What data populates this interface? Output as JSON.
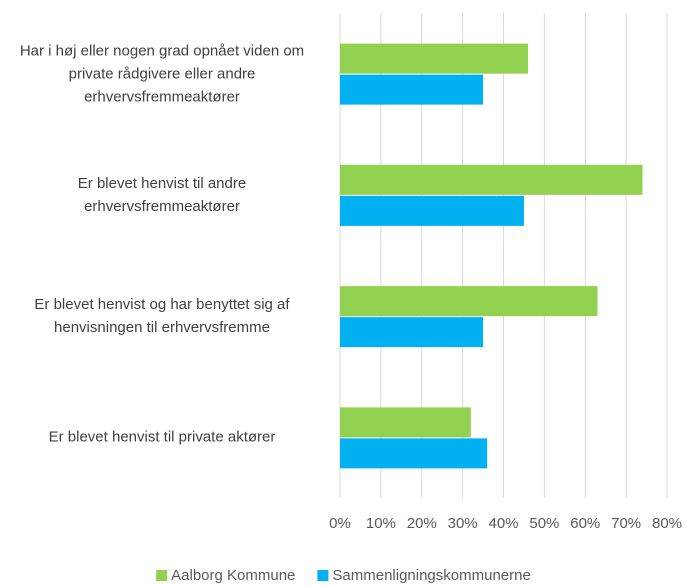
{
  "chart_data": {
    "type": "barh",
    "categories": [
      "Har i høj eller nogen grad opnået viden om private rådgivere eller andre erhvervsfremmeaktører",
      "Er blevet henvist til andre erhvervsfremmeaktører",
      "Er blevet henvist og har benyttet sig af henvisningen til erhvervsfremme",
      "Er blevet henvist til private aktører"
    ],
    "series": [
      {
        "name": "Aalborg Kommune",
        "color": "#92d050",
        "values": [
          46,
          74,
          63,
          32
        ]
      },
      {
        "name": "Sammenligningskommunerne",
        "color": "#00b0f0",
        "values": [
          35,
          45,
          35,
          36
        ]
      }
    ],
    "xlim": [
      0,
      80
    ],
    "xticks": [
      {
        "value": 0,
        "label": "0%"
      },
      {
        "value": 10,
        "label": "10%"
      },
      {
        "value": 20,
        "label": "20%"
      },
      {
        "value": 30,
        "label": "30%"
      },
      {
        "value": 40,
        "label": "40%"
      },
      {
        "value": 50,
        "label": "50%"
      },
      {
        "value": 60,
        "label": "60%"
      },
      {
        "value": 70,
        "label": "70%"
      },
      {
        "value": 80,
        "label": "80%"
      }
    ],
    "grid": true,
    "legend": "bottom"
  }
}
